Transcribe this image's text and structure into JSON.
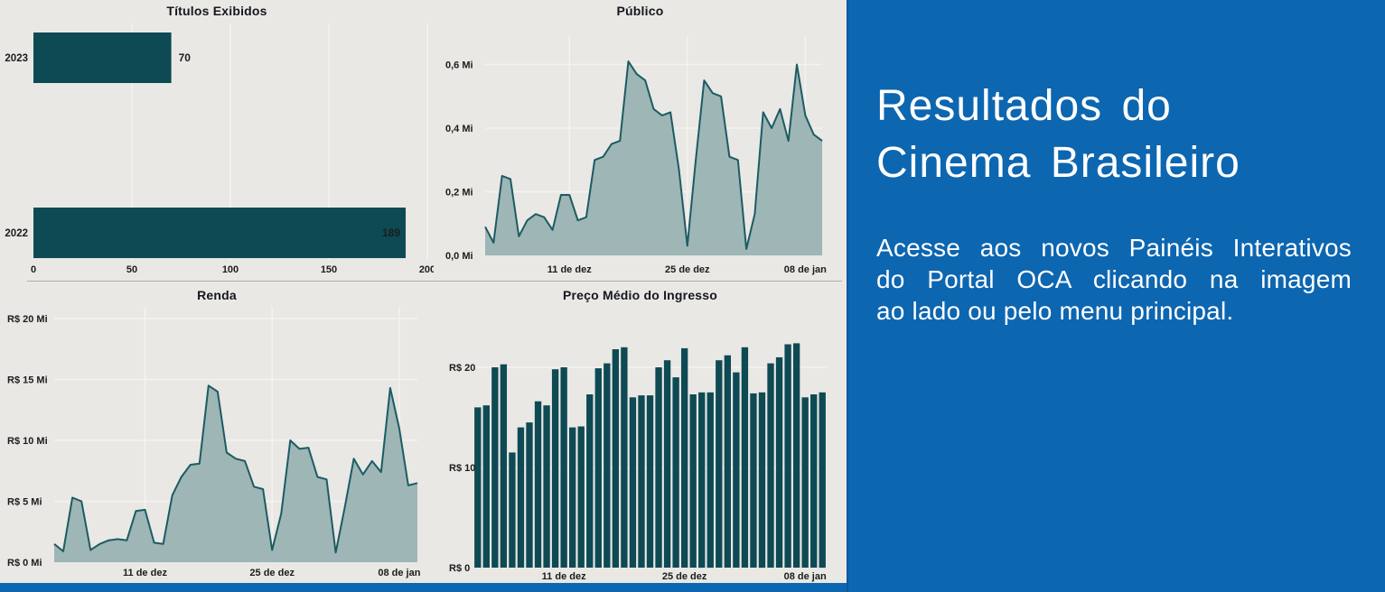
{
  "colors": {
    "teal_bar": "#0e4a54",
    "area_fill": "#9eb6b5",
    "area_stroke": "#1c5b64",
    "chart_bg": "#e9e8e4",
    "gridline": "#f4f3f0",
    "divider": "#b1b0ad",
    "blue_panel": "#0d66b0",
    "panel_text": "#ffffff",
    "chart_text": "#1c1c1c"
  },
  "panel": {
    "title_lines": [
      "Resultados do",
      "Cinema Brasileiro"
    ],
    "body_lines": [
      "Acesse aos novos Painéis Interativos",
      "do Portal OCA clicando na imagem",
      "ao lado ou pelo menu principal."
    ]
  },
  "chart_data": [
    {
      "id": "titulos",
      "type": "bar",
      "orientation": "horizontal",
      "title": "Títulos Exibidos",
      "categories": [
        "2023",
        "2022"
      ],
      "values": [
        70,
        189
      ],
      "data_labels": [
        "70",
        "189"
      ],
      "label_inside": [
        false,
        true
      ],
      "xlim": [
        0,
        200
      ],
      "x_ticks": [
        0,
        50,
        100,
        150,
        200
      ],
      "grid": "vertical"
    },
    {
      "id": "publico",
      "type": "area",
      "title": "Público",
      "ylabel_unit": "Mi",
      "ylim": [
        0,
        0.69
      ],
      "y_tick_labels": [
        "0,0 Mi",
        "0,2 Mi",
        "0,4 Mi",
        "0,6 Mi"
      ],
      "y_tick_values": [
        0,
        0.2,
        0.4,
        0.6
      ],
      "x_tick_labels": [
        "11 de dez",
        "25 de dez",
        "08 de jan"
      ],
      "x_tick_indices": [
        10,
        24,
        38
      ],
      "values": [
        0.09,
        0.04,
        0.25,
        0.24,
        0.06,
        0.11,
        0.13,
        0.12,
        0.08,
        0.19,
        0.19,
        0.11,
        0.12,
        0.3,
        0.31,
        0.35,
        0.36,
        0.61,
        0.57,
        0.55,
        0.46,
        0.44,
        0.45,
        0.27,
        0.03,
        0.3,
        0.55,
        0.51,
        0.5,
        0.31,
        0.3,
        0.02,
        0.13,
        0.45,
        0.4,
        0.46,
        0.36,
        0.6,
        0.44,
        0.38,
        0.36
      ],
      "grid": "both"
    },
    {
      "id": "renda",
      "type": "area",
      "title": "Renda",
      "ylabel_unit": "R$ Mi",
      "ylim": [
        0,
        20.8
      ],
      "y_tick_labels": [
        "R$ 0 Mi",
        "R$ 5 Mi",
        "R$ 10 Mi",
        "R$ 15 Mi",
        "R$ 20 Mi"
      ],
      "y_tick_values": [
        0,
        5,
        10,
        15,
        20
      ],
      "x_tick_labels": [
        "11 de dez",
        "25 de dez",
        "08 de jan"
      ],
      "x_tick_indices": [
        10,
        24,
        38
      ],
      "values": [
        1.5,
        0.9,
        5.3,
        5.0,
        1.0,
        1.5,
        1.8,
        1.9,
        1.8,
        4.2,
        4.3,
        1.6,
        1.5,
        5.5,
        7.0,
        8.0,
        8.1,
        14.5,
        14.0,
        9.0,
        8.5,
        8.3,
        6.2,
        6.0,
        1.0,
        4.0,
        10.0,
        9.3,
        9.4,
        7.0,
        6.8,
        0.8,
        4.5,
        8.5,
        7.2,
        8.3,
        7.4,
        14.3,
        11.0,
        6.3,
        6.5
      ],
      "grid": "both"
    },
    {
      "id": "preco",
      "type": "bar",
      "orientation": "vertical",
      "title": "Preço Médio do Ingresso",
      "ylabel_unit": "R$",
      "ylim": [
        0,
        25.5
      ],
      "y_tick_labels": [
        "R$ 0",
        "R$ 10",
        "R$ 20"
      ],
      "y_tick_values": [
        0,
        10,
        20
      ],
      "x_tick_labels": [
        "11 de dez",
        "25 de dez",
        "08 de jan"
      ],
      "x_tick_indices": [
        10,
        24,
        38
      ],
      "values": [
        16.0,
        16.2,
        20.0,
        20.3,
        11.5,
        14.0,
        14.5,
        16.6,
        16.2,
        19.8,
        20.0,
        14.0,
        14.1,
        17.3,
        19.9,
        20.4,
        21.8,
        22.0,
        17.0,
        17.2,
        17.2,
        20.0,
        20.7,
        19.0,
        21.9,
        17.3,
        17.5,
        17.5,
        20.7,
        21.2,
        19.5,
        22.0,
        17.4,
        17.5,
        20.4,
        21.0,
        22.3,
        22.4,
        17.0,
        17.3,
        17.5
      ],
      "grid": "horizontal"
    }
  ]
}
